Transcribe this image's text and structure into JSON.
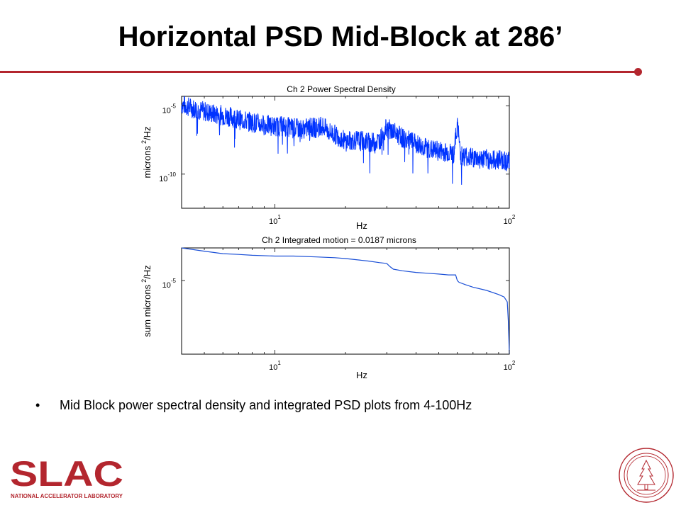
{
  "slide": {
    "title": "Horizontal PSD Mid-Block at 286’",
    "bullet": "Mid Block power spectral density and integrated PSD plots from 4-100Hz",
    "accent_color": "#b3262e"
  },
  "logo": {
    "wordmark": "SLAC",
    "tagline": "NATIONAL ACCELERATOR LABORATORY",
    "color": "#b3262e"
  },
  "seal": {
    "icon": "stanford-seal-icon",
    "color": "#b3262e"
  },
  "chart_data": [
    {
      "type": "line",
      "title": "Ch 2  Power Spectral Density",
      "xlabel": "Hz",
      "ylabel_base": "microns",
      "ylabel_sup": "2",
      "ylabel_tail": "/Hz",
      "xscale": "log",
      "yscale": "log",
      "xlim": [
        4,
        100
      ],
      "ylim_exp": [
        -12.5,
        -4.3
      ],
      "xticks": [
        {
          "base": "10",
          "exp": "1",
          "value": 10
        },
        {
          "base": "10",
          "exp": "2",
          "value": 100
        }
      ],
      "yticks": [
        {
          "base": "10",
          "exp": "-5",
          "value_exp": -5
        },
        {
          "base": "10",
          "exp": "-10",
          "value_exp": -10
        }
      ],
      "color": "#0033ff",
      "series": [
        {
          "x": [
            4,
            4.5,
            5,
            5.5,
            6,
            6.5,
            7,
            7.5,
            8,
            9,
            10,
            11,
            12,
            13,
            14,
            15,
            16,
            17,
            18,
            19,
            20,
            22,
            24,
            26,
            28,
            30,
            32,
            34,
            36,
            38,
            40,
            43,
            46,
            50,
            54,
            58,
            60,
            62,
            65,
            70,
            75,
            80,
            85,
            90,
            95,
            100
          ],
          "y_exp": [
            -4.9,
            -5.2,
            -5.4,
            -5.6,
            -5.7,
            -5.8,
            -6.0,
            -6.1,
            -6.2,
            -6.4,
            -6.5,
            -6.5,
            -6.6,
            -6.7,
            -6.6,
            -6.6,
            -6.5,
            -6.9,
            -7.1,
            -7.3,
            -7.6,
            -7.5,
            -7.6,
            -7.7,
            -7.5,
            -6.6,
            -6.9,
            -7.2,
            -7.5,
            -7.6,
            -7.8,
            -8.0,
            -8.2,
            -8.3,
            -8.4,
            -8.5,
            -6.3,
            -8.6,
            -8.7,
            -8.8,
            -8.9,
            -8.9,
            -9.0,
            -8.9,
            -9.0,
            -9.1
          ],
          "noise_exp": 0.75
        }
      ]
    },
    {
      "type": "line",
      "title": "Ch 2  Integrated motion =  0.0187 microns",
      "xlabel": "Hz",
      "ylabel_base": "sum microns",
      "ylabel_sup": "2",
      "ylabel_tail": "/Hz",
      "xscale": "log",
      "yscale": "log",
      "xlim": [
        4,
        100
      ],
      "ylim_exp": [
        -5.9,
        -4.6
      ],
      "xticks": [
        {
          "base": "10",
          "exp": "1",
          "value": 10
        },
        {
          "base": "10",
          "exp": "2",
          "value": 100
        }
      ],
      "yticks": [
        {
          "base": "10",
          "exp": "-5",
          "value_exp": -5
        }
      ],
      "color": "#1a4fd6",
      "series": [
        {
          "x": [
            4,
            5,
            6,
            7,
            8,
            10,
            12,
            15,
            18,
            20,
            25,
            28,
            30,
            31,
            32,
            35,
            40,
            45,
            50,
            55,
            59,
            60,
            61,
            65,
            70,
            80,
            90,
            95,
            98,
            99,
            100
          ],
          "y_exp": [
            -4.6,
            -4.64,
            -4.67,
            -4.68,
            -4.69,
            -4.7,
            -4.7,
            -4.71,
            -4.72,
            -4.73,
            -4.76,
            -4.78,
            -4.79,
            -4.83,
            -4.86,
            -4.88,
            -4.9,
            -4.91,
            -4.92,
            -4.93,
            -4.93,
            -5.0,
            -5.02,
            -5.05,
            -5.08,
            -5.12,
            -5.17,
            -5.2,
            -5.26,
            -5.5,
            -5.9
          ]
        }
      ]
    }
  ]
}
